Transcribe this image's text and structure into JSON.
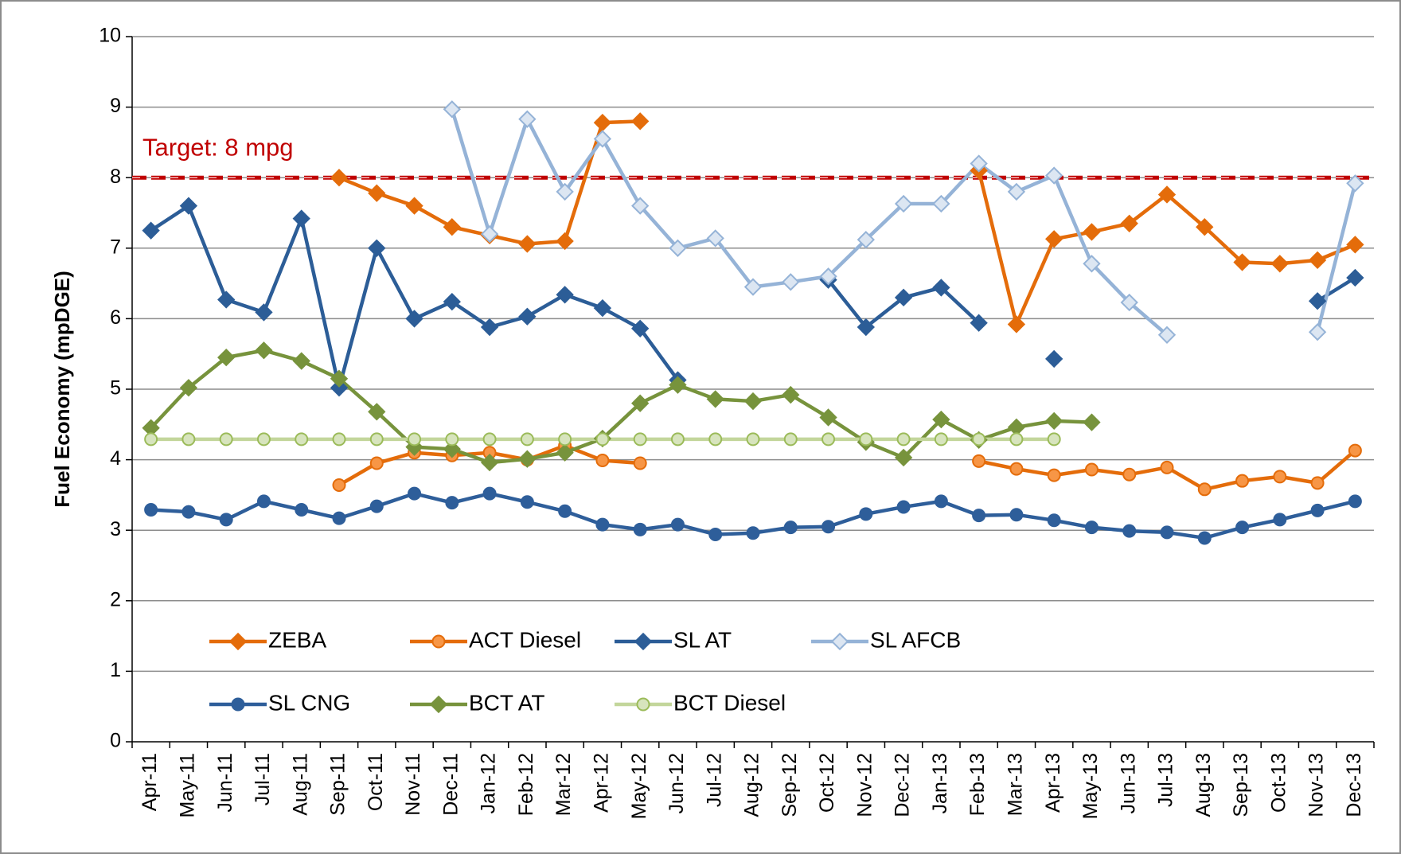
{
  "chart_data": {
    "type": "line",
    "y_label": "Fuel Economy (mpDGE)",
    "categories": [
      "Apr-11",
      "May-11",
      "Jun-11",
      "Jul-11",
      "Aug-11",
      "Sep-11",
      "Oct-11",
      "Nov-11",
      "Dec-11",
      "Jan-12",
      "Feb-12",
      "Mar-12",
      "Apr-12",
      "May-12",
      "Jun-12",
      "Jul-12",
      "Aug-12",
      "Sep-12",
      "Oct-12",
      "Nov-12",
      "Dec-12",
      "Jan-13",
      "Feb-13",
      "Mar-13",
      "Apr-13",
      "May-13",
      "Jun-13",
      "Jul-13",
      "Aug-13",
      "Sep-13",
      "Oct-13",
      "Nov-13",
      "Dec-13"
    ],
    "ylim": [
      0,
      10
    ],
    "yticks": [
      0,
      1,
      2,
      3,
      4,
      5,
      6,
      7,
      8,
      9,
      10
    ],
    "grid": true,
    "target": {
      "label": "Target: 8 mpg",
      "value": 8,
      "color": "#c00000"
    },
    "series": [
      {
        "name": "ZEBA",
        "color": "#e46c0a",
        "marker": "diamond",
        "marker_fill": "#e46c0a",
        "values": [
          null,
          null,
          null,
          null,
          null,
          8.0,
          7.78,
          7.6,
          7.3,
          7.18,
          7.06,
          7.1,
          8.78,
          8.8,
          null,
          null,
          null,
          null,
          null,
          null,
          null,
          null,
          8.1,
          5.92,
          7.13,
          7.23,
          7.35,
          7.76,
          7.3,
          6.8,
          6.78,
          6.83,
          7.05
        ]
      },
      {
        "name": "ACT Diesel",
        "color": "#e46c0a",
        "marker": "circle",
        "marker_fill": "#f79646",
        "values": [
          null,
          null,
          null,
          null,
          null,
          3.64,
          3.95,
          4.1,
          4.06,
          4.1,
          4.0,
          4.2,
          3.99,
          3.95,
          null,
          null,
          null,
          null,
          null,
          null,
          null,
          null,
          3.98,
          3.87,
          3.78,
          3.86,
          3.79,
          3.89,
          3.58,
          3.7,
          3.76,
          3.67,
          4.13
        ]
      },
      {
        "name": "SL AT",
        "color": "#2c5d97",
        "marker": "diamond",
        "marker_fill": "#2c5d97",
        "values": [
          7.25,
          7.6,
          6.27,
          6.09,
          7.42,
          5.02,
          7.0,
          6.0,
          6.24,
          5.88,
          6.03,
          6.34,
          6.15,
          5.86,
          5.13,
          null,
          null,
          null,
          6.55,
          5.88,
          6.3,
          6.44,
          5.94,
          null,
          5.43,
          null,
          null,
          null,
          null,
          null,
          null,
          6.25,
          6.58
        ]
      },
      {
        "name": "SL AFCB",
        "color": "#95b3d7",
        "marker": "diamond",
        "marker_fill": "#dce6f2",
        "values": [
          null,
          null,
          null,
          null,
          null,
          null,
          null,
          null,
          8.97,
          7.2,
          8.83,
          7.8,
          8.55,
          7.6,
          7.0,
          7.14,
          6.45,
          6.52,
          6.6,
          7.12,
          7.63,
          7.63,
          8.2,
          7.8,
          8.03,
          6.78,
          6.23,
          5.77,
          null,
          null,
          null,
          5.81,
          7.92
        ]
      },
      {
        "name": "SL CNG",
        "color": "#2e5e9a",
        "marker": "circle",
        "marker_fill": "#2e5e9a",
        "values": [
          3.29,
          3.26,
          3.15,
          3.41,
          3.29,
          3.17,
          3.34,
          3.52,
          3.39,
          3.52,
          3.4,
          3.27,
          3.08,
          3.01,
          3.08,
          2.94,
          2.96,
          3.04,
          3.05,
          3.23,
          3.33,
          3.41,
          3.21,
          3.22,
          3.14,
          3.04,
          2.99,
          2.97,
          2.89,
          3.04,
          3.15,
          3.28,
          3.41
        ]
      },
      {
        "name": "BCT AT",
        "color": "#77933c",
        "marker": "diamond",
        "marker_fill": "#77933c",
        "values": [
          4.45,
          5.02,
          5.45,
          5.55,
          5.4,
          5.15,
          4.68,
          4.18,
          4.15,
          3.96,
          4.01,
          4.1,
          4.3,
          4.8,
          5.06,
          4.86,
          4.83,
          4.92,
          4.6,
          4.25,
          4.03,
          4.57,
          4.28,
          4.46,
          4.55,
          4.53,
          null,
          null,
          null,
          null,
          null,
          null,
          null
        ]
      },
      {
        "name": "BCT Diesel",
        "color": "#c3d69b",
        "marker": "circle",
        "marker_fill": "#d7e4bd",
        "marker_stroke": "#9bbb59",
        "values": [
          4.29,
          4.29,
          4.29,
          4.29,
          4.29,
          4.29,
          4.29,
          4.29,
          4.29,
          4.29,
          4.29,
          4.29,
          4.29,
          4.29,
          4.29,
          4.29,
          4.29,
          4.29,
          4.29,
          4.29,
          4.29,
          4.29,
          4.29,
          4.29,
          4.29,
          null,
          null,
          null,
          null,
          null,
          null,
          null,
          null
        ]
      }
    ]
  }
}
